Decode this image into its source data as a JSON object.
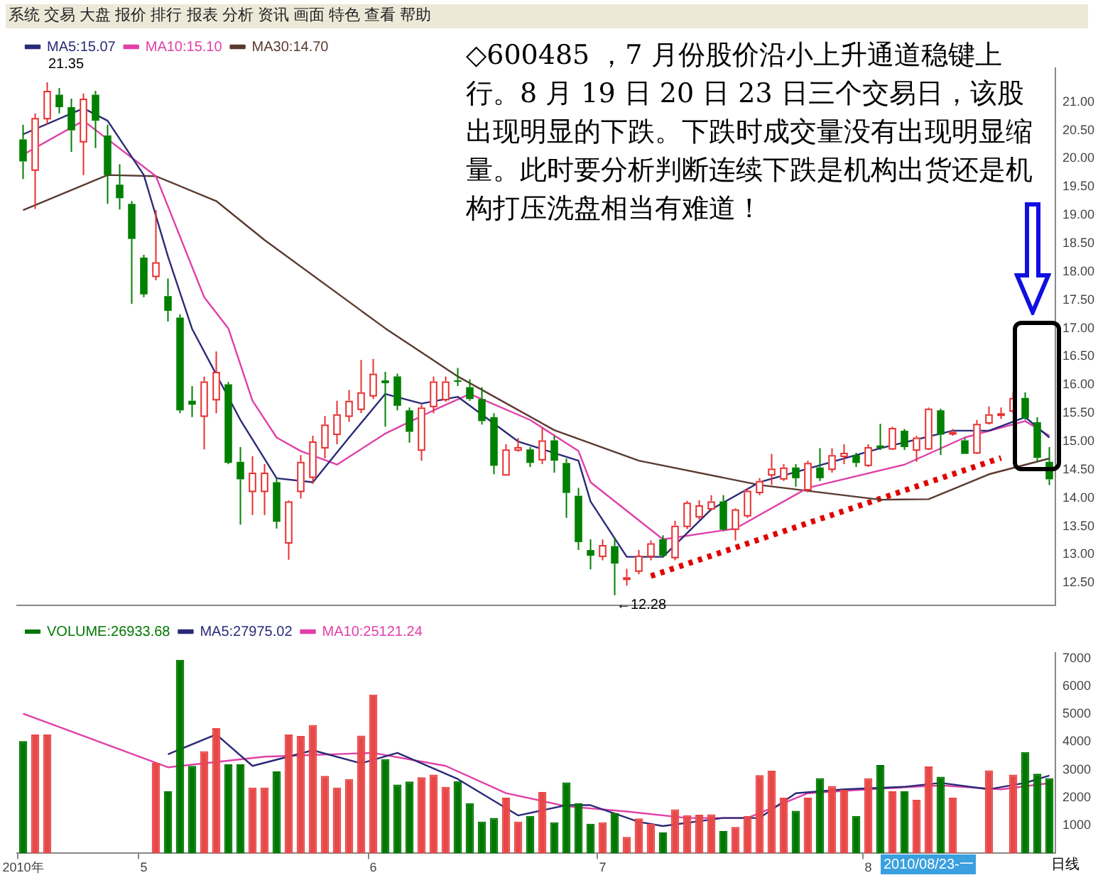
{
  "chart_data": [
    {
      "type": "candlestick",
      "annotations": [
        "系统 交易 大盘 报价 排行 报表 分析 资讯 画面 特色 查看 帮助",
        "◇600485 ，7 月份股价沿小上升通道稳键上行。8 月 19 日 20 日 23 日三个交易日，该股出现明显的下跌。下跌时成交量没有出现明显缩量。此时要分析判断连续下跌是机构出货还是机构打压洗盘相当有难道！",
        "21.35",
        "←12.28"
      ],
      "categories": [
        null,
        null,
        null,
        null,
        null,
        null,
        null,
        null,
        null,
        null,
        null,
        null,
        null,
        null,
        null,
        null,
        null,
        null,
        null,
        null,
        null,
        null,
        null,
        null,
        null,
        null,
        null,
        null,
        null,
        null,
        null,
        null,
        null,
        null,
        null,
        null,
        null,
        null,
        null,
        null,
        null,
        null,
        null,
        null,
        null,
        null,
        null,
        null,
        null,
        null,
        null,
        null,
        null,
        null,
        null,
        null,
        null,
        null,
        null,
        null,
        null,
        null,
        null,
        null,
        null,
        null,
        null,
        null,
        null,
        null,
        null,
        null,
        null,
        null,
        null,
        null,
        null,
        null,
        null,
        null,
        null,
        null,
        null,
        null,
        null,
        null
      ],
      "ohlc": [
        [
          20.34,
          20.6,
          19.64,
          19.95
        ],
        [
          19.81,
          20.8,
          19.11,
          20.72
        ],
        [
          20.72,
          21.35,
          20.6,
          21.2
        ],
        [
          21.13,
          21.25,
          20.8,
          20.91
        ],
        [
          20.91,
          21.06,
          20.12,
          20.5
        ],
        [
          20.31,
          21.15,
          19.71,
          21.06
        ],
        [
          21.13,
          21.2,
          20.19,
          20.67
        ],
        [
          20.41,
          20.6,
          19.2,
          19.71
        ],
        [
          19.54,
          19.9,
          19.1,
          19.3
        ],
        [
          19.2,
          19.25,
          17.43,
          18.58
        ],
        [
          18.25,
          18.3,
          17.55,
          17.6
        ],
        [
          17.93,
          19.09,
          17.85,
          18.17
        ],
        [
          17.57,
          17.88,
          17.12,
          17.31
        ],
        [
          17.19,
          17.25,
          15.5,
          15.55
        ],
        [
          15.72,
          15.98,
          15.43,
          15.65
        ],
        [
          15.46,
          16.15,
          14.86,
          16.06
        ],
        [
          15.75,
          16.59,
          15.5,
          16.23
        ],
        [
          16.01,
          16.05,
          14.6,
          14.62
        ],
        [
          14.64,
          14.9,
          13.53,
          14.33
        ],
        [
          14.13,
          14.74,
          13.7,
          14.45
        ],
        [
          14.13,
          14.6,
          13.7,
          14.45
        ],
        [
          14.28,
          14.35,
          13.46,
          13.58
        ],
        [
          13.22,
          13.96,
          12.91,
          13.94
        ],
        [
          14.13,
          14.76,
          13.99,
          14.64
        ],
        [
          14.38,
          15.1,
          14.25,
          15.0
        ],
        [
          14.9,
          15.45,
          14.7,
          15.3
        ],
        [
          15.14,
          15.72,
          14.95,
          15.48
        ],
        [
          15.46,
          15.91,
          15.35,
          15.72
        ],
        [
          15.58,
          16.44,
          15.5,
          15.87
        ],
        [
          15.82,
          16.46,
          15.75,
          16.2
        ],
        [
          16.08,
          16.23,
          15.26,
          16.03
        ],
        [
          16.15,
          16.2,
          15.55,
          15.63
        ],
        [
          15.55,
          15.6,
          14.98,
          15.17
        ],
        [
          14.86,
          15.65,
          14.66,
          15.6
        ],
        [
          15.63,
          16.15,
          15.5,
          16.06
        ],
        [
          15.75,
          16.15,
          15.7,
          16.06
        ],
        [
          16.08,
          16.3,
          15.98,
          16.06
        ],
        [
          15.96,
          16.1,
          15.72,
          15.75
        ],
        [
          15.75,
          15.96,
          15.3,
          15.36
        ],
        [
          15.43,
          15.5,
          14.42,
          14.57
        ],
        [
          14.42,
          14.95,
          14.4,
          14.86
        ],
        [
          14.86,
          15.06,
          14.82,
          14.9
        ],
        [
          14.86,
          14.9,
          14.55,
          14.62
        ],
        [
          14.69,
          15.24,
          14.6,
          15.02
        ],
        [
          15.02,
          15.1,
          14.45,
          14.66
        ],
        [
          14.62,
          14.7,
          13.65,
          14.09
        ],
        [
          14.04,
          14.18,
          13.08,
          13.22
        ],
        [
          13.08,
          13.27,
          12.74,
          12.98
        ],
        [
          12.98,
          13.27,
          12.9,
          13.17
        ],
        [
          13.15,
          13.3,
          12.28,
          12.84
        ],
        [
          12.58,
          12.75,
          12.45,
          12.6
        ],
        [
          12.72,
          13.08,
          12.65,
          12.98
        ],
        [
          12.98,
          13.25,
          12.9,
          13.2
        ],
        [
          13.27,
          13.34,
          12.95,
          12.98
        ],
        [
          12.96,
          13.6,
          12.9,
          13.51
        ],
        [
          13.51,
          13.95,
          13.45,
          13.92
        ],
        [
          13.68,
          13.96,
          13.62,
          13.87
        ],
        [
          13.82,
          14.05,
          13.78,
          13.94
        ],
        [
          13.94,
          14.05,
          13.42,
          13.44
        ],
        [
          13.46,
          13.82,
          13.25,
          13.8
        ],
        [
          13.7,
          14.18,
          13.65,
          14.13
        ],
        [
          14.11,
          14.35,
          14.05,
          14.3
        ],
        [
          14.42,
          14.78,
          14.23,
          14.52
        ],
        [
          14.35,
          14.6,
          14.3,
          14.54
        ],
        [
          14.54,
          14.6,
          14.2,
          14.35
        ],
        [
          14.16,
          14.66,
          14.1,
          14.62
        ],
        [
          14.54,
          14.88,
          14.3,
          14.35
        ],
        [
          14.52,
          14.88,
          14.45,
          14.76
        ],
        [
          14.75,
          14.95,
          14.6,
          14.8
        ],
        [
          14.76,
          14.8,
          14.55,
          14.62
        ],
        [
          14.59,
          14.95,
          14.55,
          14.9
        ],
        [
          14.93,
          15.31,
          14.85,
          14.88
        ],
        [
          14.88,
          15.26,
          14.85,
          15.24
        ],
        [
          15.19,
          15.22,
          14.85,
          14.9
        ],
        [
          14.86,
          15.1,
          14.64,
          15.07
        ],
        [
          14.88,
          15.6,
          14.85,
          15.58
        ],
        [
          15.55,
          15.58,
          14.76,
          15.12
        ],
        [
          15.15,
          15.22,
          15.1,
          15.17
        ],
        [
          15.02,
          15.06,
          14.78,
          14.78
        ],
        [
          14.81,
          15.38,
          14.78,
          15.31
        ],
        [
          15.34,
          15.62,
          15.3,
          15.48
        ],
        [
          15.48,
          15.6,
          15.4,
          15.5
        ],
        [
          15.55,
          15.87,
          15.5,
          15.77
        ],
        [
          15.77,
          15.87,
          15.38,
          15.41
        ],
        [
          15.34,
          15.43,
          14.64,
          14.71
        ],
        [
          14.64,
          14.9,
          14.23,
          14.33
        ]
      ],
      "series": [
        {
          "name": "MA5:15.07",
          "type": "line",
          "color": "#2a2a78",
          "values": [
            20.43,
            null,
            null,
            null,
            null,
            20.89,
            null,
            20.67,
            null,
            null,
            19.71,
            null,
            18.27,
            null,
            16.99,
            null,
            null,
            null,
            15.38,
            null,
            null,
            14.35,
            null,
            null,
            14.28,
            null,
            null,
            15.07,
            null,
            null,
            15.84,
            null,
            null,
            15.67,
            null,
            null,
            15.79,
            null,
            null,
            null,
            null,
            15.0,
            null,
            null,
            null,
            null,
            14.66,
            13.94,
            null,
            null,
            12.96,
            null,
            null,
            12.96,
            null,
            null,
            null,
            13.8,
            null,
            null,
            null,
            14.28,
            null,
            null,
            null,
            14.52,
            null,
            null,
            null,
            null,
            null,
            14.88,
            null,
            null,
            null,
            null,
            null,
            15.19,
            null,
            null,
            15.19,
            null,
            null,
            15.43,
            null,
            15.07
          ]
        },
        {
          "name": "MA10:15.10",
          "type": "line",
          "color": "#e040a8",
          "values": [
            20.07,
            null,
            null,
            null,
            null,
            20.67,
            null,
            null,
            null,
            null,
            null,
            19.69,
            null,
            null,
            null,
            17.55,
            null,
            17.0,
            null,
            15.72,
            null,
            15.07,
            null,
            14.83,
            null,
            null,
            14.59,
            null,
            null,
            null,
            15.14,
            null,
            null,
            null,
            15.55,
            null,
            null,
            15.84,
            null,
            null,
            null,
            null,
            15.38,
            null,
            null,
            null,
            14.83,
            14.28,
            null,
            null,
            null,
            null,
            null,
            13.27,
            null,
            null,
            null,
            null,
            null,
            13.46,
            null,
            null,
            null,
            null,
            null,
            14.18,
            null,
            null,
            null,
            null,
            null,
            null,
            null,
            14.59,
            null,
            null,
            null,
            null,
            15.07,
            null,
            null,
            null,
            null,
            15.36,
            null,
            15.1
          ]
        },
        {
          "name": "MA30:14.70",
          "type": "line",
          "color": "#5a3a30",
          "values": [
            19.09,
            null,
            null,
            null,
            null,
            null,
            null,
            19.71,
            null,
            null,
            null,
            19.69,
            null,
            null,
            null,
            null,
            19.25,
            null,
            null,
            null,
            18.56,
            null,
            null,
            null,
            null,
            null,
            null,
            null,
            null,
            null,
            17.0,
            null,
            null,
            null,
            null,
            null,
            16.15,
            null,
            null,
            null,
            null,
            null,
            null,
            null,
            15.2,
            null,
            null,
            null,
            null,
            null,
            null,
            14.66,
            null,
            null,
            null,
            null,
            null,
            null,
            null,
            null,
            null,
            14.23,
            null,
            null,
            null,
            null,
            null,
            null,
            null,
            null,
            null,
            13.97,
            null,
            null,
            null,
            13.98,
            null,
            null,
            null,
            null,
            14.42,
            null,
            null,
            null,
            null,
            14.7
          ]
        },
        {
          "type": "line",
          "color": "#e00000",
          "line_style": "dotted",
          "values": [
            null,
            null,
            null,
            null,
            null,
            null,
            null,
            null,
            null,
            null,
            null,
            null,
            null,
            null,
            null,
            null,
            null,
            null,
            null,
            null,
            null,
            null,
            null,
            null,
            null,
            null,
            null,
            null,
            null,
            null,
            null,
            null,
            null,
            null,
            null,
            null,
            null,
            null,
            null,
            null,
            null,
            null,
            null,
            null,
            null,
            null,
            null,
            null,
            null,
            null,
            null,
            null,
            12.62,
            null,
            null,
            null,
            null,
            null,
            null,
            null,
            null,
            null,
            null,
            null,
            null,
            null,
            null,
            null,
            null,
            null,
            null,
            null,
            null,
            null,
            null,
            null,
            null,
            null,
            null,
            null,
            null,
            14.71,
            null,
            null,
            null,
            null
          ]
        }
      ],
      "ylim": [
        12.1,
        21.6
      ],
      "yticks": [
        {
          "value": 12.5,
          "label": "12.50"
        },
        {
          "value": 13,
          "label": "13.00"
        },
        {
          "value": 13.5,
          "label": "13.50"
        },
        {
          "value": 14,
          "label": "14.00"
        },
        {
          "value": 14.5,
          "label": "14.50"
        },
        {
          "value": 15,
          "label": "15.00"
        },
        {
          "value": 15.5,
          "label": "15.50"
        },
        {
          "value": 16,
          "label": "16.00"
        },
        {
          "value": 16.5,
          "label": "16.50"
        },
        {
          "value": 17,
          "label": "17.00"
        },
        {
          "value": 17.5,
          "label": "17.50"
        },
        {
          "value": 18,
          "label": "18.00"
        },
        {
          "value": 18.5,
          "label": "18.50"
        },
        {
          "value": 19,
          "label": "19.00"
        },
        {
          "value": 19.5,
          "label": "19.50"
        },
        {
          "value": 20,
          "label": "20.00"
        },
        {
          "value": 20.5,
          "label": "20.50"
        },
        {
          "value": 21,
          "label": "21.00"
        }
      ],
      "tick_labels": "y",
      "legend": "top left",
      "marker": "none",
      "grid": false
    },
    {
      "type": "bar",
      "annotations": [
        "2010/08/23-一",
        "日线"
      ],
      "categories": [
        "2010年",
        null,
        null,
        null,
        null,
        null,
        null,
        null,
        null,
        null,
        "5",
        null,
        null,
        null,
        null,
        null,
        null,
        null,
        null,
        null,
        null,
        null,
        null,
        null,
        null,
        null,
        null,
        null,
        null,
        "6",
        null,
        null,
        null,
        null,
        null,
        null,
        null,
        null,
        null,
        null,
        null,
        null,
        null,
        null,
        null,
        null,
        null,
        null,
        "7",
        null,
        null,
        null,
        null,
        null,
        null,
        null,
        null,
        null,
        null,
        null,
        null,
        null,
        null,
        null,
        null,
        null,
        null,
        null,
        null,
        null,
        "8",
        null,
        null,
        null,
        null,
        null,
        null,
        null,
        null,
        null,
        null,
        null,
        null,
        null,
        null,
        null
      ],
      "series": [
        {
          "name": "VOLUME:26933.68",
          "values": [
            4030,
            4270,
            4270,
            null,
            null,
            null,
            null,
            null,
            null,
            null,
            null,
            3250,
            2230,
            6950,
            3140,
            3670,
            4500,
            3200,
            3200,
            2360,
            2360,
            2940,
            4270,
            4220,
            4610,
            2780,
            2360,
            2670,
            4230,
            5700,
            3380,
            2470,
            2580,
            2730,
            2830,
            2390,
            2590,
            1800,
            1140,
            1270,
            2000,
            1140,
            1340,
            2200,
            1110,
            2550,
            1800,
            1060,
            1110,
            1450,
            590,
            1250,
            1060,
            750,
            1580,
            1370,
            1390,
            1400,
            800,
            950,
            1340,
            2810,
            2970,
            2000,
            1530,
            2000,
            2700,
            2420,
            2280,
            1340,
            2700,
            3170,
            2230,
            2230,
            1920,
            3120,
            2750,
            2000,
            null,
            null,
            2980,
            null,
            2830,
            3640,
            2860,
            2700
          ],
          "colors": [
            "#007800",
            "#e84848",
            "#e84848",
            "#007800",
            "#007800",
            "#e84848",
            "#007800",
            "#007800",
            "#007800",
            "#007800",
            "#007800",
            "#e84848",
            "#007800",
            "#007800",
            "#007800",
            "#e84848",
            "#e84848",
            "#007800",
            "#007800",
            "#e84848",
            "#e84848",
            "#007800",
            "#e84848",
            "#e84848",
            "#e84848",
            "#e84848",
            "#e84848",
            "#e84848",
            "#e84848",
            "#e84848",
            "#007800",
            "#007800",
            "#007800",
            "#e84848",
            "#e84848",
            "#e84848",
            "#007800",
            "#007800",
            "#007800",
            "#007800",
            "#e84848",
            "#e84848",
            "#007800",
            "#e84848",
            "#007800",
            "#007800",
            "#007800",
            "#007800",
            "#e84848",
            "#007800",
            "#e84848",
            "#e84848",
            "#e84848",
            "#007800",
            "#e84848",
            "#e84848",
            "#e84848",
            "#e84848",
            "#007800",
            "#e84848",
            "#e84848",
            "#e84848",
            "#e84848",
            "#e84848",
            "#007800",
            "#e84848",
            "#007800",
            "#e84848",
            "#e84848",
            "#007800",
            "#e84848",
            "#007800",
            "#e84848",
            "#007800",
            "#e84848",
            "#e84848",
            "#007800",
            "#e84848",
            "#007800",
            "#e84848",
            "#e84848",
            "#e84848",
            "#e84848",
            "#007800",
            "#007800",
            "#007800"
          ]
        },
        {
          "name": "MA5:27975.02",
          "type": "line",
          "color": "#2a2a78",
          "values": [
            null,
            null,
            null,
            null,
            null,
            null,
            null,
            null,
            null,
            null,
            null,
            null,
            3560,
            null,
            null,
            null,
            4270,
            null,
            null,
            3140,
            null,
            null,
            null,
            null,
            3700,
            null,
            null,
            null,
            3230,
            null,
            null,
            3610,
            null,
            null,
            null,
            null,
            2670,
            null,
            null,
            null,
            null,
            1360,
            null,
            null,
            null,
            1730,
            null,
            1730,
            null,
            null,
            null,
            1130,
            null,
            980,
            null,
            null,
            null,
            null,
            1270,
            null,
            null,
            1270,
            null,
            null,
            2160,
            null,
            null,
            null,
            2300,
            null,
            null,
            null,
            null,
            2390,
            null,
            null,
            2530,
            null,
            null,
            null,
            2300,
            null,
            null,
            2530,
            null,
            2790
          ]
        },
        {
          "name": "MA10:25121.24",
          "type": "line",
          "color": "#e040a8",
          "values": [
            5020,
            null,
            null,
            null,
            null,
            null,
            null,
            null,
            null,
            null,
            null,
            null,
            3090,
            null,
            null,
            null,
            null,
            null,
            null,
            null,
            3470,
            null,
            null,
            null,
            null,
            null,
            null,
            null,
            null,
            3610,
            null,
            null,
            null,
            null,
            null,
            3140,
            null,
            null,
            null,
            null,
            2160,
            null,
            null,
            null,
            null,
            1690,
            null,
            null,
            null,
            null,
            1500,
            null,
            null,
            null,
            null,
            1270,
            null,
            null,
            null,
            null,
            1270,
            null,
            null,
            null,
            null,
            2160,
            null,
            null,
            null,
            null,
            2300,
            null,
            null,
            null,
            null,
            null,
            2440,
            null,
            null,
            null,
            null,
            2300,
            null,
            null,
            null,
            2520
          ]
        }
      ],
      "ylim": [
        0,
        7200
      ],
      "yticks": [
        1000,
        2000,
        3000,
        4000,
        5000,
        6000,
        7000
      ],
      "legend": "top left",
      "marker": "none",
      "grid": false
    }
  ]
}
